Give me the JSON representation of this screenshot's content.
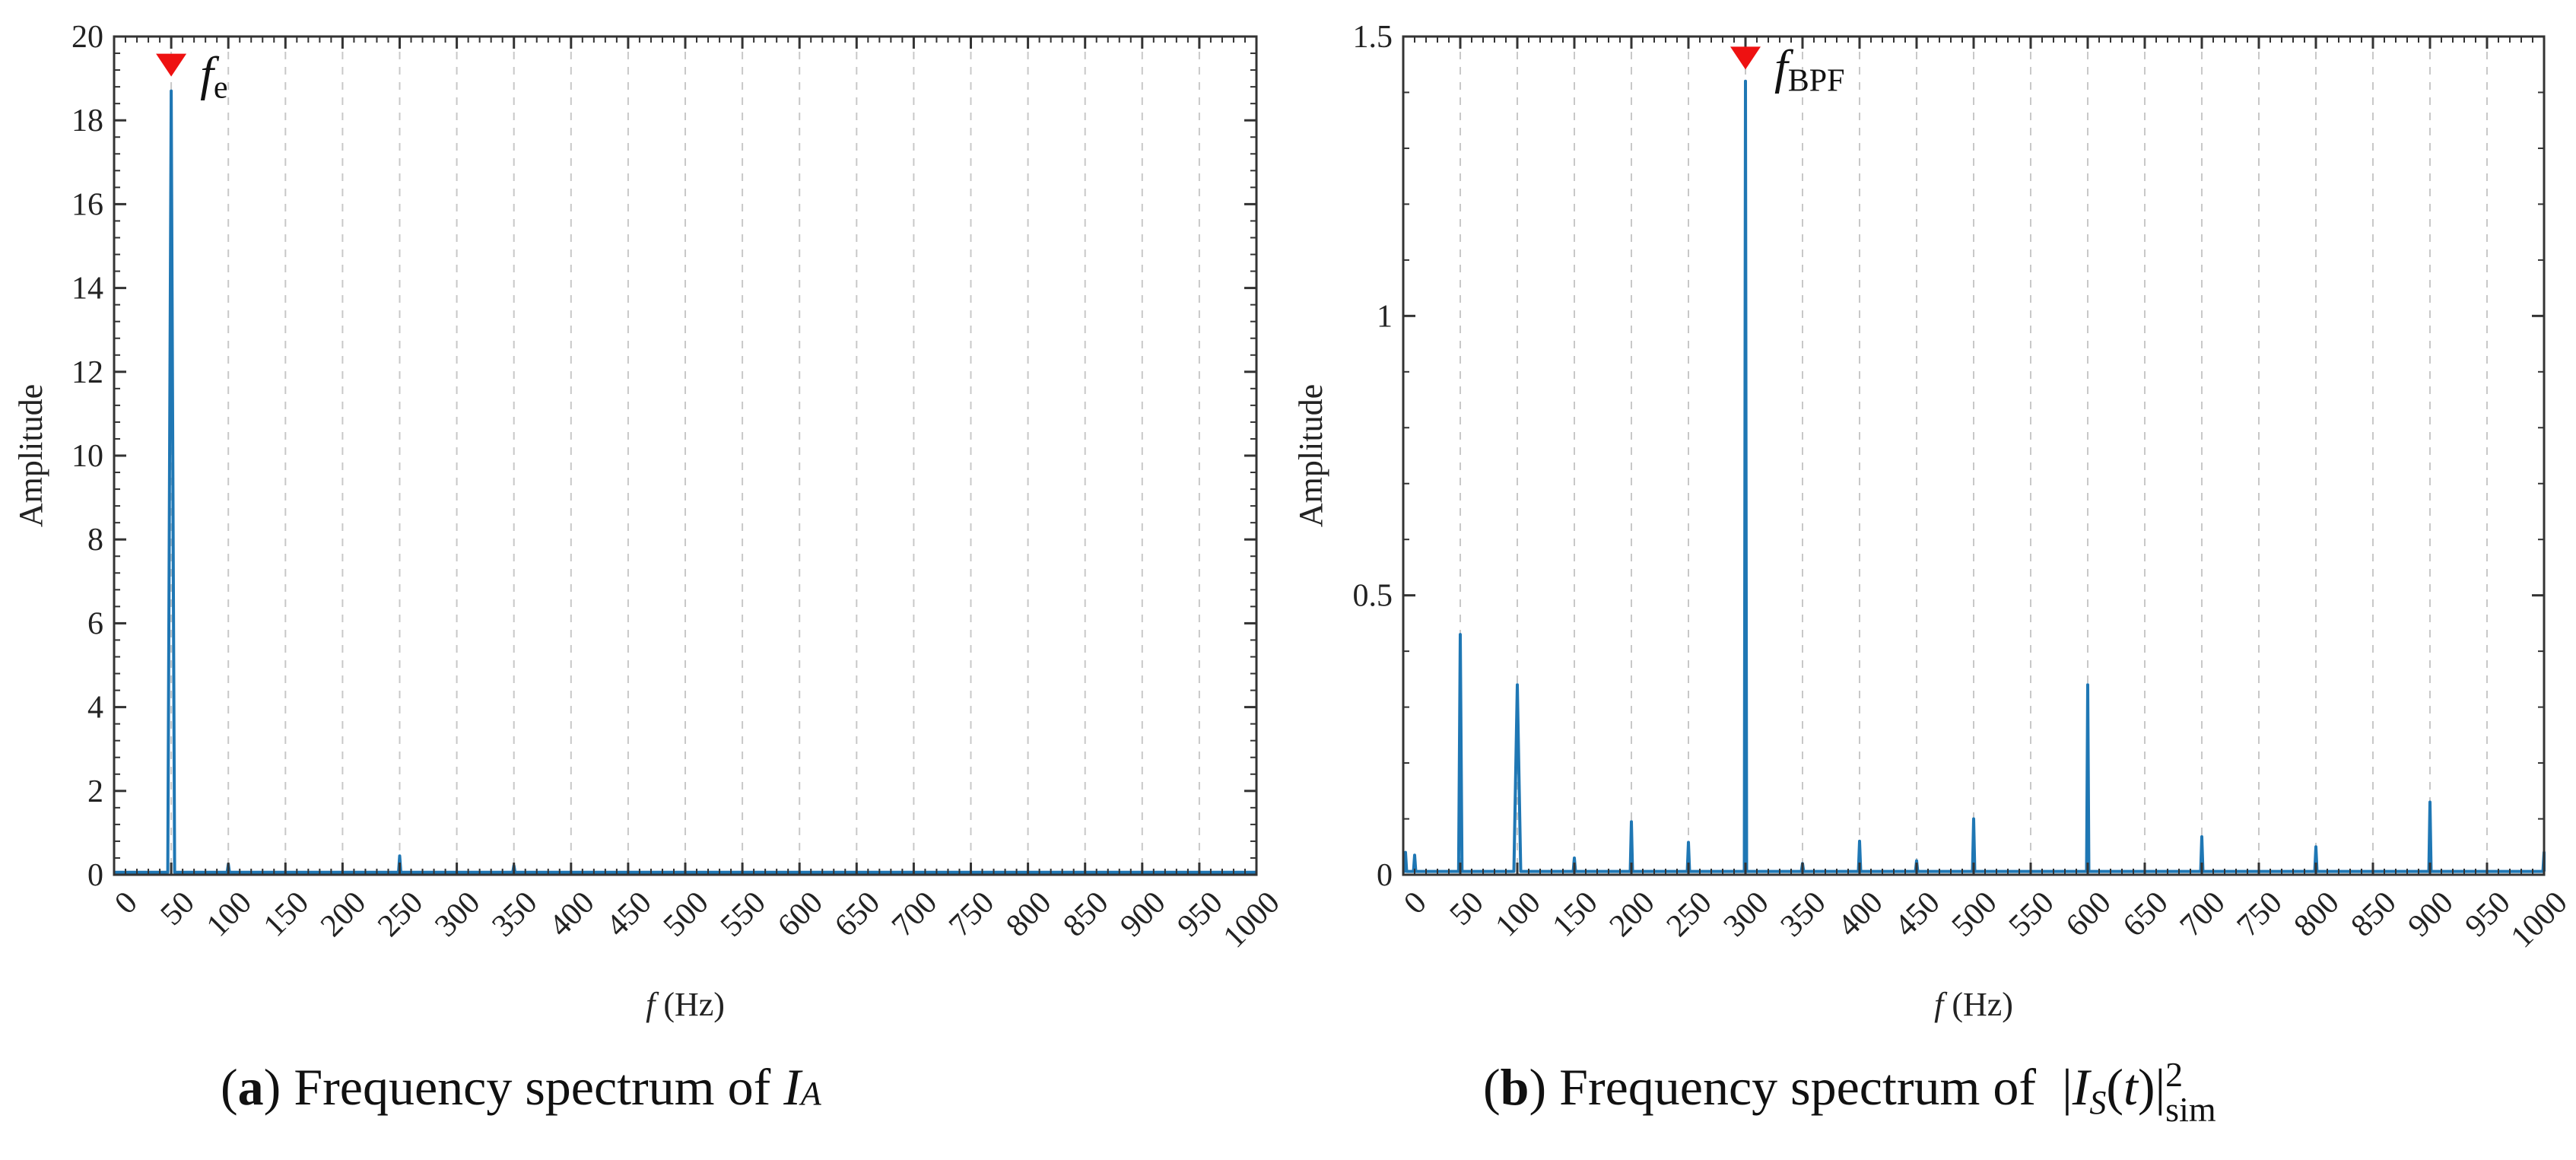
{
  "colors": {
    "line": "#1f77b4",
    "marker": "#ee1111",
    "grid": "#c8c8c8",
    "axis": "#333333"
  },
  "chart_data": [
    {
      "id": "a",
      "type": "line",
      "xlabel_italic": "f",
      "xlabel_rest": " (Hz)",
      "ylabel": "Amplitude",
      "xlim": [
        0,
        1000
      ],
      "ylim": [
        0,
        20
      ],
      "xticks": [
        0,
        50,
        100,
        150,
        200,
        250,
        300,
        350,
        400,
        450,
        500,
        550,
        600,
        650,
        700,
        750,
        800,
        850,
        900,
        950,
        1000
      ],
      "xtick_labels": [
        "0",
        "50",
        "100",
        "150",
        "200",
        "250",
        "300",
        "350",
        "400",
        "450",
        "500",
        "550",
        "600",
        "650",
        "700",
        "750",
        "800",
        "850",
        "900",
        "950",
        "1000"
      ],
      "yticks": [
        0,
        2,
        4,
        6,
        8,
        10,
        12,
        14,
        16,
        18,
        20
      ],
      "ytick_labels": [
        "0",
        "2",
        "4",
        "6",
        "8",
        "10",
        "12",
        "14",
        "16",
        "18",
        "20"
      ],
      "baseline": 0.06,
      "peaks": [
        {
          "x": 50,
          "y": 18.7,
          "width": 3
        },
        {
          "x": 100,
          "y": 0.25,
          "width": 1
        },
        {
          "x": 250,
          "y": 0.45,
          "width": 1
        },
        {
          "x": 350,
          "y": 0.22,
          "width": 1
        }
      ],
      "marker": {
        "x": 50,
        "y": 19.3,
        "label_main": "f",
        "label_sub": "e"
      },
      "caption_letter": "a",
      "caption_text": " Frequency spectrum of ",
      "caption_var": "I",
      "caption_sub": "A"
    },
    {
      "id": "b",
      "type": "line",
      "xlabel_italic": "f",
      "xlabel_rest": " (Hz)",
      "ylabel": "Amplitude",
      "xlim": [
        0,
        1000
      ],
      "ylim": [
        0,
        1.5
      ],
      "xticks": [
        0,
        50,
        100,
        150,
        200,
        250,
        300,
        350,
        400,
        450,
        500,
        550,
        600,
        650,
        700,
        750,
        800,
        850,
        900,
        950,
        1000
      ],
      "xtick_labels": [
        "0",
        "50",
        "100",
        "150",
        "200",
        "250",
        "300",
        "350",
        "400",
        "450",
        "500",
        "550",
        "600",
        "650",
        "700",
        "750",
        "800",
        "850",
        "900",
        "950",
        "1000"
      ],
      "yticks": [
        0,
        0.5,
        1,
        1.5
      ],
      "ytick_labels": [
        "0",
        "0.5",
        "1",
        "1.5"
      ],
      "baseline": 0.006,
      "peaks": [
        {
          "x": 2,
          "y": 0.04,
          "width": 1
        },
        {
          "x": 10,
          "y": 0.035,
          "width": 1
        },
        {
          "x": 50,
          "y": 0.43,
          "width": 1.5
        },
        {
          "x": 100,
          "y": 0.34,
          "width": 3
        },
        {
          "x": 150,
          "y": 0.03,
          "width": 1
        },
        {
          "x": 200,
          "y": 0.095,
          "width": 1
        },
        {
          "x": 250,
          "y": 0.058,
          "width": 1
        },
        {
          "x": 300,
          "y": 1.42,
          "width": 1
        },
        {
          "x": 350,
          "y": 0.02,
          "width": 1
        },
        {
          "x": 400,
          "y": 0.06,
          "width": 1
        },
        {
          "x": 450,
          "y": 0.025,
          "width": 1
        },
        {
          "x": 500,
          "y": 0.1,
          "width": 1
        },
        {
          "x": 600,
          "y": 0.34,
          "width": 1
        },
        {
          "x": 700,
          "y": 0.068,
          "width": 1
        },
        {
          "x": 800,
          "y": 0.05,
          "width": 1
        },
        {
          "x": 900,
          "y": 0.13,
          "width": 1
        },
        {
          "x": 1000,
          "y": 0.04,
          "width": 1
        }
      ],
      "marker": {
        "x": 300,
        "y": 1.46,
        "label_main": "f",
        "label_sub": "BPF"
      },
      "caption_letter": "b",
      "caption_text": " Frequency spectrum of ",
      "caption_var": "I",
      "caption_sub": "S",
      "caption_t": "t",
      "caption_sup": "2",
      "caption_subsub": "sim"
    }
  ]
}
